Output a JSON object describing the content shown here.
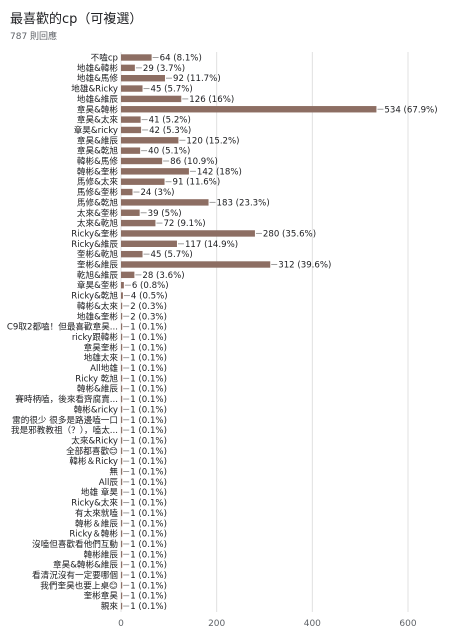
{
  "header": {
    "title": "最喜歡的cp（可複選）",
    "subtitle": "787 則回應"
  },
  "colors": {
    "bar": "#8d6e63",
    "grid": "#e0e0e0"
  },
  "chart_data": {
    "type": "bar",
    "orientation": "horizontal",
    "title": "最喜歡的cp（可複選）",
    "xlim": [
      0,
      700
    ],
    "xticks": [
      0,
      200,
      400,
      600
    ],
    "grid": true,
    "categories": [
      "不嗑cp",
      "地雄&韓彬",
      "地雄&馬修",
      "地雄&Ricky",
      "地雄&維辰",
      "章昊&韓彬",
      "章昊&太來",
      "章昊&ricky",
      "章昊&維辰",
      "章昊&乾旭",
      "韓彬&馬修",
      "韓彬&奎彬",
      "馬修&太來",
      "馬修&奎彬",
      "馬修&乾旭",
      "太來&奎彬",
      "太來&乾旭",
      "Ricky&奎彬",
      "Ricky&維辰",
      "奎彬&乾旭",
      "奎彬&維辰",
      "乾旭&維辰",
      "章昊&奎彬",
      "Ricky&乾旭",
      "韓彬&太來",
      "地雄&奎彬",
      "C9取2都嗑！但最喜歡章昊...",
      "ricky跟韓彬",
      "章昊奎彬",
      "地雄太來",
      "All地雄",
      "Ricky 乾旭",
      "韓彬&維辰",
      "賽時柄嗑，後來看齊腐賣...",
      "韓彬&ricky",
      "雷的很少 很多是路邊嗑一口",
      "我是邪教教祖（？），嗑太...",
      "太來&Ricky",
      "全部都喜歡😊",
      "韓彬＆Ricky",
      "無",
      "All辰",
      "地雄 章昊",
      "Ricky&太來",
      "有太來就嗑",
      "韓彬＆維辰",
      "Ricky＆韓彬",
      "沒嗑但喜歡看他們互動",
      "韓彬維辰",
      "章昊&韓彬&維辰",
      "看清況沒有一定要哪個",
      "我們奎昊也要上桌😊",
      "奎彬章昊",
      "親來"
    ],
    "values": [
      64,
      29,
      92,
      45,
      126,
      534,
      41,
      42,
      120,
      40,
      86,
      142,
      91,
      24,
      183,
      39,
      72,
      280,
      117,
      45,
      312,
      28,
      6,
      4,
      2,
      2,
      1,
      1,
      1,
      1,
      1,
      1,
      1,
      1,
      1,
      1,
      1,
      1,
      1,
      1,
      1,
      1,
      1,
      1,
      1,
      1,
      1,
      1,
      1,
      1,
      1,
      1,
      1,
      1
    ],
    "value_labels": [
      "64 (8.1%)",
      "29 (3.7%)",
      "92 (11.7%)",
      "45 (5.7%)",
      "126 (16%)",
      "534 (67.9%)",
      "41 (5.2%)",
      "42 (5.3%)",
      "120 (15.2%)",
      "40 (5.1%)",
      "86 (10.9%)",
      "142 (18%)",
      "91 (11.6%)",
      "24 (3%)",
      "183 (23.3%)",
      "39 (5%)",
      "72 (9.1%)",
      "280 (35.6%)",
      "117 (14.9%)",
      "45 (5.7%)",
      "312 (39.6%)",
      "28 (3.6%)",
      "6 (0.8%)",
      "4 (0.5%)",
      "2 (0.3%)",
      "2 (0.3%)",
      "1 (0.1%)",
      "1 (0.1%)",
      "1 (0.1%)",
      "1 (0.1%)",
      "1 (0.1%)",
      "1 (0.1%)",
      "1 (0.1%)",
      "1 (0.1%)",
      "1 (0.1%)",
      "1 (0.1%)",
      "1 (0.1%)",
      "1 (0.1%)",
      "1 (0.1%)",
      "1 (0.1%)",
      "1 (0.1%)",
      "1 (0.1%)",
      "1 (0.1%)",
      "1 (0.1%)",
      "1 (0.1%)",
      "1 (0.1%)",
      "1 (0.1%)",
      "1 (0.1%)",
      "1 (0.1%)",
      "1 (0.1%)",
      "1 (0.1%)",
      "1 (0.1%)",
      "1 (0.1%)",
      "1 (0.1%)"
    ]
  }
}
